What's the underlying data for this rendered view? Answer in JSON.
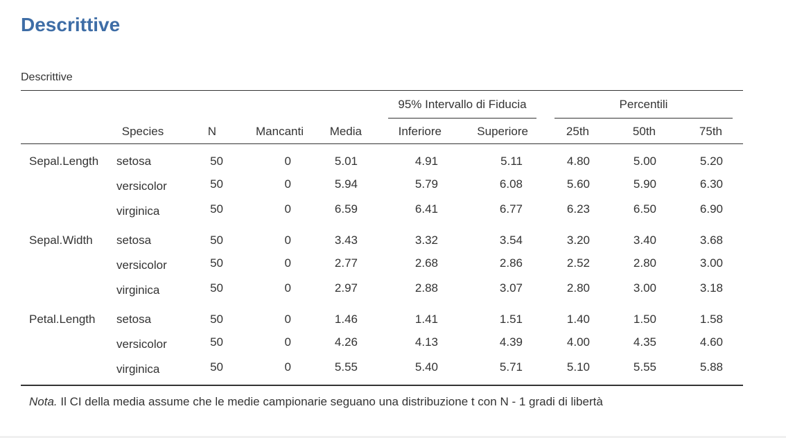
{
  "heading": "Descrittive",
  "table": {
    "title": "Descrittive",
    "group_headers": {
      "ci": "95% Intervallo di Fiducia",
      "percentiles": "Percentili"
    },
    "columns": {
      "species": "Species",
      "n": "N",
      "missing": "Mancanti",
      "mean": "Media",
      "lower": "Inferiore",
      "upper": "Superiore",
      "p25": "25th",
      "p50": "50th",
      "p75": "75th"
    },
    "rows": [
      {
        "variable": "Sepal.Length",
        "species": "setosa",
        "n": "50",
        "missing": "0",
        "mean": "5.01",
        "lower": "4.91",
        "upper": "5.11",
        "p25": "4.80",
        "p50": "5.00",
        "p75": "5.20"
      },
      {
        "variable": "",
        "species": "versicolor",
        "n": "50",
        "missing": "0",
        "mean": "5.94",
        "lower": "5.79",
        "upper": "6.08",
        "p25": "5.60",
        "p50": "5.90",
        "p75": "6.30"
      },
      {
        "variable": "",
        "species": "virginica",
        "n": "50",
        "missing": "0",
        "mean": "6.59",
        "lower": "6.41",
        "upper": "6.77",
        "p25": "6.23",
        "p50": "6.50",
        "p75": "6.90"
      },
      {
        "variable": "Sepal.Width",
        "species": "setosa",
        "n": "50",
        "missing": "0",
        "mean": "3.43",
        "lower": "3.32",
        "upper": "3.54",
        "p25": "3.20",
        "p50": "3.40",
        "p75": "3.68"
      },
      {
        "variable": "",
        "species": "versicolor",
        "n": "50",
        "missing": "0",
        "mean": "2.77",
        "lower": "2.68",
        "upper": "2.86",
        "p25": "2.52",
        "p50": "2.80",
        "p75": "3.00"
      },
      {
        "variable": "",
        "species": "virginica",
        "n": "50",
        "missing": "0",
        "mean": "2.97",
        "lower": "2.88",
        "upper": "3.07",
        "p25": "2.80",
        "p50": "3.00",
        "p75": "3.18"
      },
      {
        "variable": "Petal.Length",
        "species": "setosa",
        "n": "50",
        "missing": "0",
        "mean": "1.46",
        "lower": "1.41",
        "upper": "1.51",
        "p25": "1.40",
        "p50": "1.50",
        "p75": "1.58"
      },
      {
        "variable": "",
        "species": "versicolor",
        "n": "50",
        "missing": "0",
        "mean": "4.26",
        "lower": "4.13",
        "upper": "4.39",
        "p25": "4.00",
        "p50": "4.35",
        "p75": "4.60"
      },
      {
        "variable": "",
        "species": "virginica",
        "n": "50",
        "missing": "0",
        "mean": "5.55",
        "lower": "5.40",
        "upper": "5.71",
        "p25": "5.10",
        "p50": "5.55",
        "p75": "5.88"
      }
    ],
    "note_label": "Nota.",
    "note_text": " Il CI della media assume che le medie campionarie seguano una distribuzione t con N - 1 gradi di libertà"
  },
  "colors": {
    "heading": "#3e6da6",
    "text": "#333333"
  }
}
